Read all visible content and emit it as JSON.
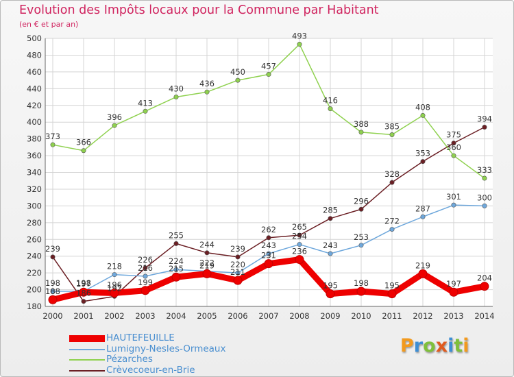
{
  "title": "Evolution des Impôts locaux pour la Commune par Habitant",
  "subtitle": "(en € et par an)",
  "logo": {
    "text": "Proxiti",
    "letters": [
      {
        "ch": "P",
        "color": "#f29a1e"
      },
      {
        "ch": "r",
        "color": "#3d8ed4"
      },
      {
        "ch": "o",
        "color": "#7fbf3b"
      },
      {
        "ch": "x",
        "color": "#e05a1e"
      },
      {
        "ch": "i",
        "color": "#3d8ed4"
      },
      {
        "ch": "t",
        "color": "#7fbf3b"
      },
      {
        "ch": "i",
        "color": "#f29a1e"
      }
    ]
  },
  "chart_data": {
    "type": "line",
    "x": [
      2000,
      2001,
      2002,
      2003,
      2004,
      2005,
      2006,
      2007,
      2008,
      2009,
      2010,
      2011,
      2012,
      2013,
      2014
    ],
    "ylim": [
      180,
      500
    ],
    "yticks": [
      180,
      200,
      220,
      240,
      260,
      280,
      300,
      320,
      340,
      360,
      380,
      400,
      420,
      440,
      460,
      480,
      500
    ],
    "grid": true,
    "legend_position": "bottom-left",
    "series": [
      {
        "name": "HAUTEFEUILLE",
        "color": "#ee0000",
        "values": [
          188,
          197,
          196,
          199,
          215,
          219,
          211,
          231,
          236,
          195,
          198,
          195,
          219,
          197,
          204
        ]
      },
      {
        "name": "Lumigny-Nesles-Ormeaux",
        "color": "#6fa8dc",
        "values": [
          198,
          198,
          218,
          216,
          224,
          222,
          220,
          243,
          254,
          243,
          253,
          272,
          287,
          301,
          300
        ]
      },
      {
        "name": "Pézarches",
        "color": "#8fd14f",
        "values": [
          373,
          366,
          396,
          413,
          430,
          436,
          450,
          457,
          493,
          416,
          388,
          385,
          408,
          360,
          333
        ]
      },
      {
        "name": "Crèvecoeur-en-Brie",
        "color": "#6b1f24",
        "values": [
          239,
          186,
          192,
          226,
          255,
          244,
          239,
          262,
          265,
          285,
          296,
          328,
          353,
          375,
          394
        ]
      }
    ],
    "data_labels": [
      [
        "188",
        "197",
        "196",
        "199",
        "215",
        "219",
        "211",
        "231",
        "236",
        "195",
        "198",
        "195",
        "219",
        "197",
        "204"
      ],
      [
        "198",
        "198",
        "218",
        "216",
        "224",
        "222",
        "220",
        "243",
        "254",
        "243",
        "253",
        "272",
        "287",
        "301",
        "300"
      ],
      [
        "373",
        "366",
        "396",
        "413",
        "430",
        "436",
        "450",
        "457",
        "493",
        "416",
        "388",
        "385",
        "408",
        "360",
        "333"
      ],
      [
        "239",
        "186",
        "192",
        "226",
        "255",
        "244",
        "239",
        "262",
        "265",
        "285",
        "296",
        "328",
        "353",
        "375",
        "394"
      ]
    ]
  }
}
